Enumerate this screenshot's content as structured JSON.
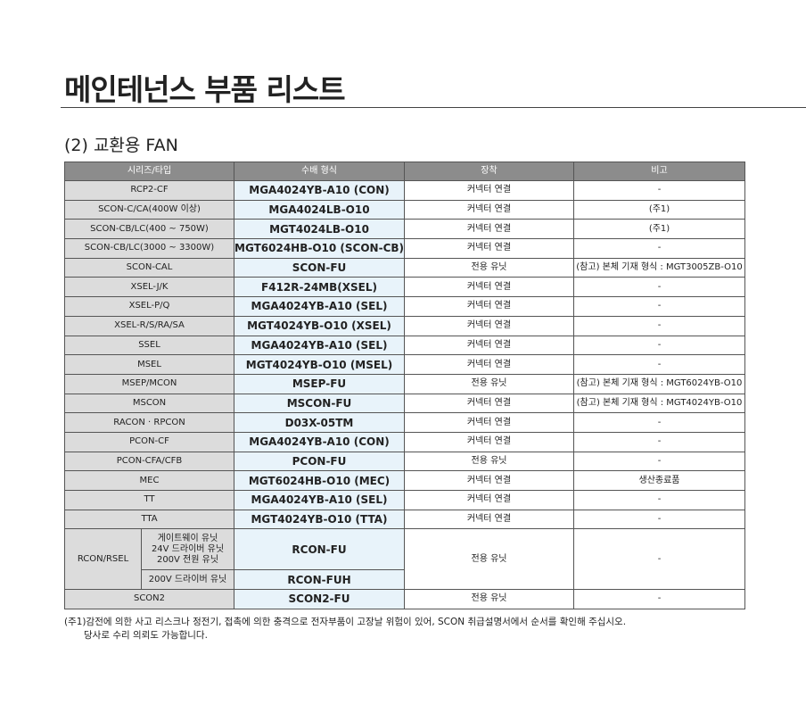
{
  "header": {
    "title": "메인테넌스 부품 리스트",
    "subtitle": "(2) 교환용 FAN"
  },
  "table": {
    "columns": [
      "시리즈/타입",
      "수배 형식",
      "장착",
      "비고"
    ],
    "rows": [
      {
        "series": "RCP2-CF",
        "model": "MGA4024YB-A10 (CON)",
        "mount": "커넥터 연결",
        "note": "-"
      },
      {
        "series": "SCON-C/CA(400W 이상)",
        "model": "MGA4024LB-O10",
        "mount": "커넥터 연결",
        "note": "(주1)"
      },
      {
        "series": "SCON-CB/LC(400 ~ 750W)",
        "model": "MGT4024LB-O10",
        "mount": "커넥터 연결",
        "note": "(주1)"
      },
      {
        "series": "SCON-CB/LC(3000 ~ 3300W)",
        "model": "MGT6024HB-O10 (SCON-CB)",
        "mount": "커넥터 연결",
        "note": "-"
      },
      {
        "series": "SCON-CAL",
        "model": "SCON-FU",
        "mount": "전용 유닛",
        "note": "(참고) 본체 기재 형식 : MGT3005ZB-O10"
      },
      {
        "series": "XSEL-J/K",
        "model": "F412R-24MB(XSEL)",
        "mount": "커넥터 연결",
        "note": "-"
      },
      {
        "series": "XSEL-P/Q",
        "model": "MGA4024YB-A10 (SEL)",
        "mount": "커넥터 연결",
        "note": "-"
      },
      {
        "series": "XSEL-R/S/RA/SA",
        "model": "MGT4024YB-O10 (XSEL)",
        "mount": "커넥터 연결",
        "note": "-"
      },
      {
        "series": "SSEL",
        "model": "MGA4024YB-A10 (SEL)",
        "mount": "커넥터 연결",
        "note": "-"
      },
      {
        "series": "MSEL",
        "model": "MGT4024YB-O10 (MSEL)",
        "mount": "커넥터 연결",
        "note": "-"
      },
      {
        "series": "MSEP/MCON",
        "model": "MSEP-FU",
        "mount": "전용 유닛",
        "note": "(참고) 본체 기재 형식 : MGT6024YB-O10"
      },
      {
        "series": "MSCON",
        "model": "MSCON-FU",
        "mount": "커넥터 연결",
        "note": "(참고) 본체 기재 형식 : MGT4024YB-O10"
      },
      {
        "series": "RACON · RPCON",
        "model": "D03X-05TM",
        "mount": "커넥터 연결",
        "note": "-"
      },
      {
        "series": "PCON-CF",
        "model": "MGA4024YB-A10 (CON)",
        "mount": "커넥터 연결",
        "note": "-"
      },
      {
        "series": "PCON-CFA/CFB",
        "model": "PCON-FU",
        "mount": "전용 유닛",
        "note": "-"
      },
      {
        "series": "MEC",
        "model": "MGT6024HB-O10 (MEC)",
        "mount": "커넥터 연결",
        "note": "생산종료품"
      },
      {
        "series": "TT",
        "model": "MGA4024YB-A10 (SEL)",
        "mount": "커넥터 연결",
        "note": "-"
      },
      {
        "series": "TTA",
        "model": "MGT4024YB-O10 (TTA)",
        "mount": "커넥터 연결",
        "note": "-"
      },
      {
        "series": "RCON/RSEL",
        "subrows": [
          {
            "units": [
              "게이트웨이 유닛",
              "24V 드라이버 유닛",
              "200V 전원 유닛"
            ],
            "model": "RCON-FU"
          },
          {
            "units": [
              "200V 드라이버 유닛"
            ],
            "model": "RCON-FUH"
          }
        ],
        "mount": "전용 유닛",
        "note": "-"
      },
      {
        "series": "SCON2",
        "model": "SCON2-FU",
        "mount": "전용 유닛",
        "note": "-"
      }
    ]
  },
  "footnote": [
    "(주1)감전에 의한 사고 리스크나 정전기, 접촉에 의한 충격으로 전자부품이 고장날 위험이 있어, SCON 취급설명서에서 순서를 확인해 주십시오.",
    "당사로 수리 의뢰도 가능합니다."
  ]
}
